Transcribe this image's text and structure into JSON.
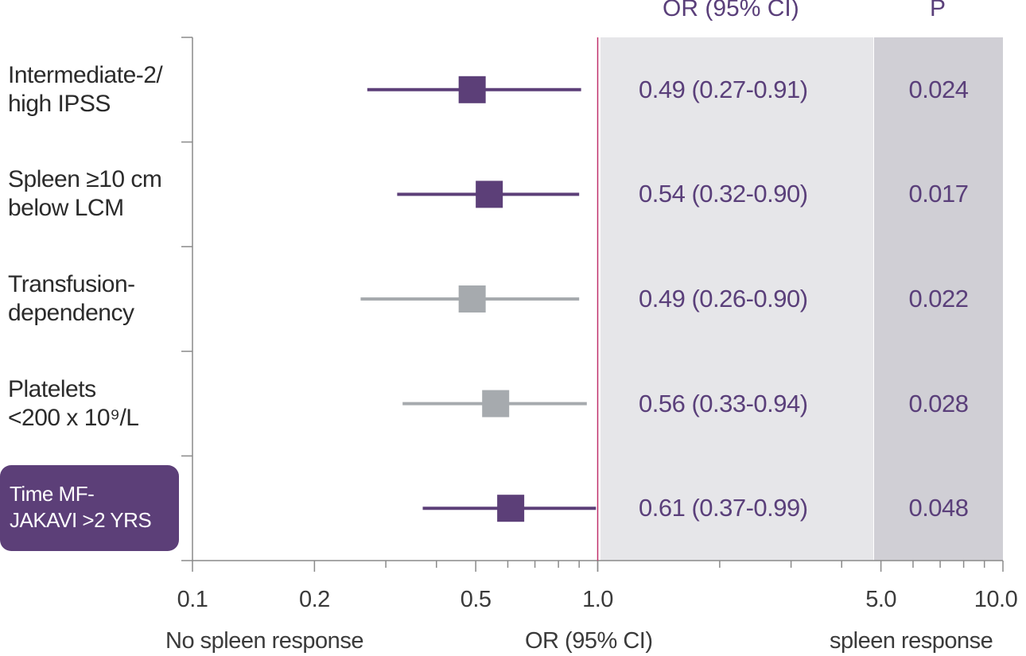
{
  "chart_data": {
    "type": "forest",
    "x_scale": "log",
    "xlim": [
      0.1,
      10.0
    ],
    "reference_line": 1.0,
    "column_headers": {
      "or": "OR (95% CI)",
      "p": "P"
    },
    "x_ticks": [
      {
        "value": 0.1,
        "label": "0.1"
      },
      {
        "value": 0.2,
        "label": "0.2"
      },
      {
        "value": 0.5,
        "label": "0.5"
      },
      {
        "value": 1.0,
        "label": "1.0"
      },
      {
        "value": 5.0,
        "label": "5.0"
      },
      {
        "value": 10.0,
        "label": "10.0"
      }
    ],
    "x_labels": {
      "left": "No spleen response",
      "center": "OR (95% CI)",
      "right": "spleen response"
    },
    "rows": [
      {
        "label_lines": [
          "Intermediate-2/",
          "high IPSS"
        ],
        "or": 0.49,
        "ci_low": 0.27,
        "ci_high": 0.91,
        "or_text": "0.49 (0.27-0.91)",
        "p_text": "0.024",
        "color": "#5c3f78",
        "highlight": false
      },
      {
        "label_lines": [
          "Spleen ≥10 cm",
          "below LCM"
        ],
        "or": 0.54,
        "ci_low": 0.32,
        "ci_high": 0.9,
        "or_text": "0.54 (0.32-0.90)",
        "p_text": "0.017",
        "color": "#5c3f78",
        "highlight": false
      },
      {
        "label_lines": [
          "Transfusion-",
          "dependency"
        ],
        "or": 0.49,
        "ci_low": 0.26,
        "ci_high": 0.9,
        "or_text": "0.49 (0.26-0.90)",
        "p_text": "0.022",
        "color": "#a6aaae",
        "highlight": false
      },
      {
        "label_lines": [
          "Platelets",
          "<200 x 10⁹/L"
        ],
        "or": 0.56,
        "ci_low": 0.33,
        "ci_high": 0.94,
        "or_text": "0.56 (0.33-0.94)",
        "p_text": "0.028",
        "color": "#a6aaae",
        "highlight": false
      },
      {
        "label_lines": [
          "Time MF-",
          "JAKAVI >2 YRS"
        ],
        "or": 0.61,
        "ci_low": 0.37,
        "ci_high": 0.99,
        "or_text": "0.61 (0.37-0.99)",
        "p_text": "0.048",
        "color": "#5c3f78",
        "highlight": true
      }
    ],
    "colors": {
      "ref_line": "#c0306a",
      "or_panel": "#e6e6e9",
      "p_panel": "#d0cfd5",
      "axis": "#8a8a8a",
      "text_purple": "#5a3f7a"
    }
  }
}
